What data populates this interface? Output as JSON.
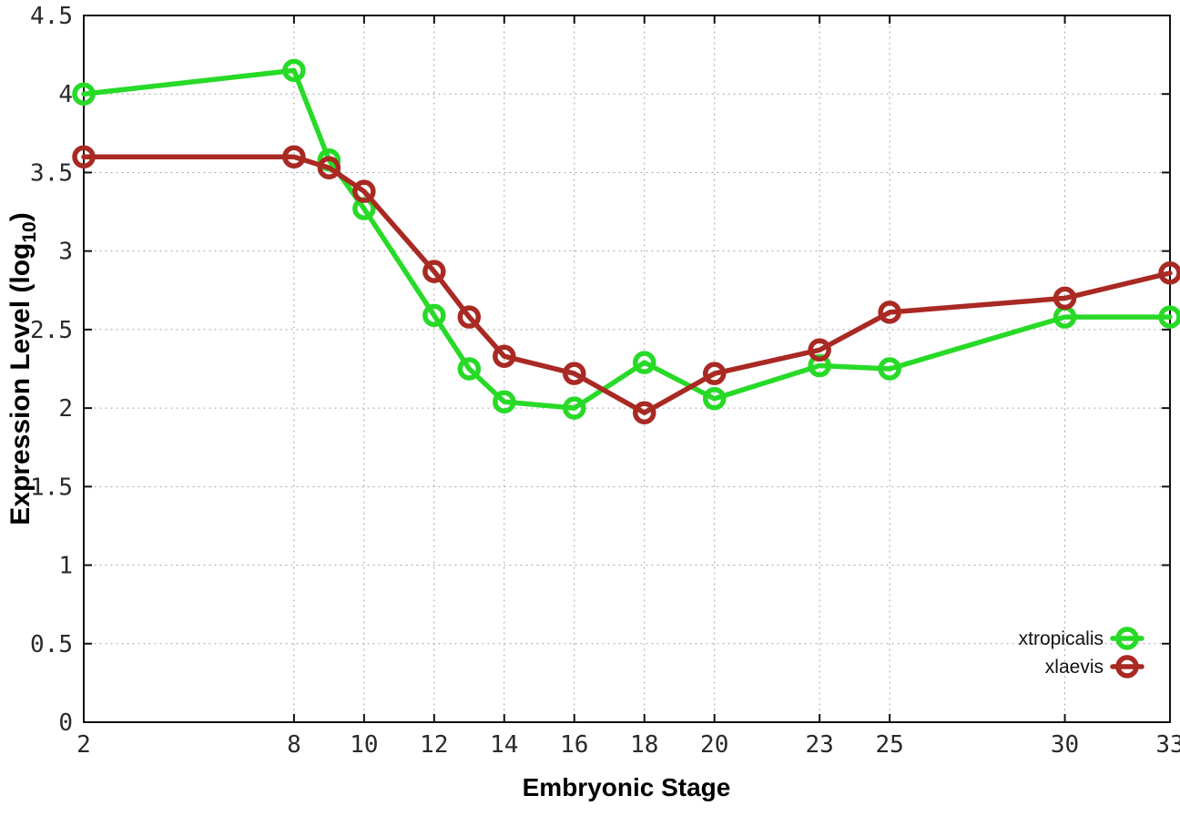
{
  "figure": {
    "ylabel_prefix": "Expression Level (log",
    "ylabel_sub": "10",
    "ylabel_suffix": ")"
  },
  "chart_data": {
    "type": "line",
    "title": "",
    "xlabel": "Embryonic Stage",
    "ylabel": "Expression Level (log10)",
    "xlim": [
      2,
      33
    ],
    "ylim": [
      0,
      4.5
    ],
    "x_ticks": [
      2,
      8,
      10,
      12,
      14,
      16,
      18,
      20,
      23,
      25,
      30,
      33
    ],
    "y_ticks": [
      0,
      0.5,
      1,
      1.5,
      2,
      2.5,
      3,
      3.5,
      4,
      4.5
    ],
    "grid": true,
    "legend_position": "bottom-right",
    "x": [
      2,
      8,
      9,
      10,
      12,
      13,
      14,
      16,
      18,
      20,
      23,
      25,
      30,
      33
    ],
    "series": [
      {
        "name": "xtropicalis",
        "color": "#27da27",
        "values": [
          4.0,
          4.15,
          3.58,
          3.27,
          2.59,
          2.25,
          2.04,
          2.0,
          2.29,
          2.06,
          2.27,
          2.25,
          2.58,
          2.58
        ]
      },
      {
        "name": "xlaevis",
        "color": "#a92923",
        "values": [
          3.6,
          3.6,
          3.53,
          3.38,
          2.87,
          2.58,
          2.33,
          2.22,
          1.97,
          2.22,
          2.37,
          2.61,
          2.7,
          2.86
        ]
      }
    ]
  }
}
